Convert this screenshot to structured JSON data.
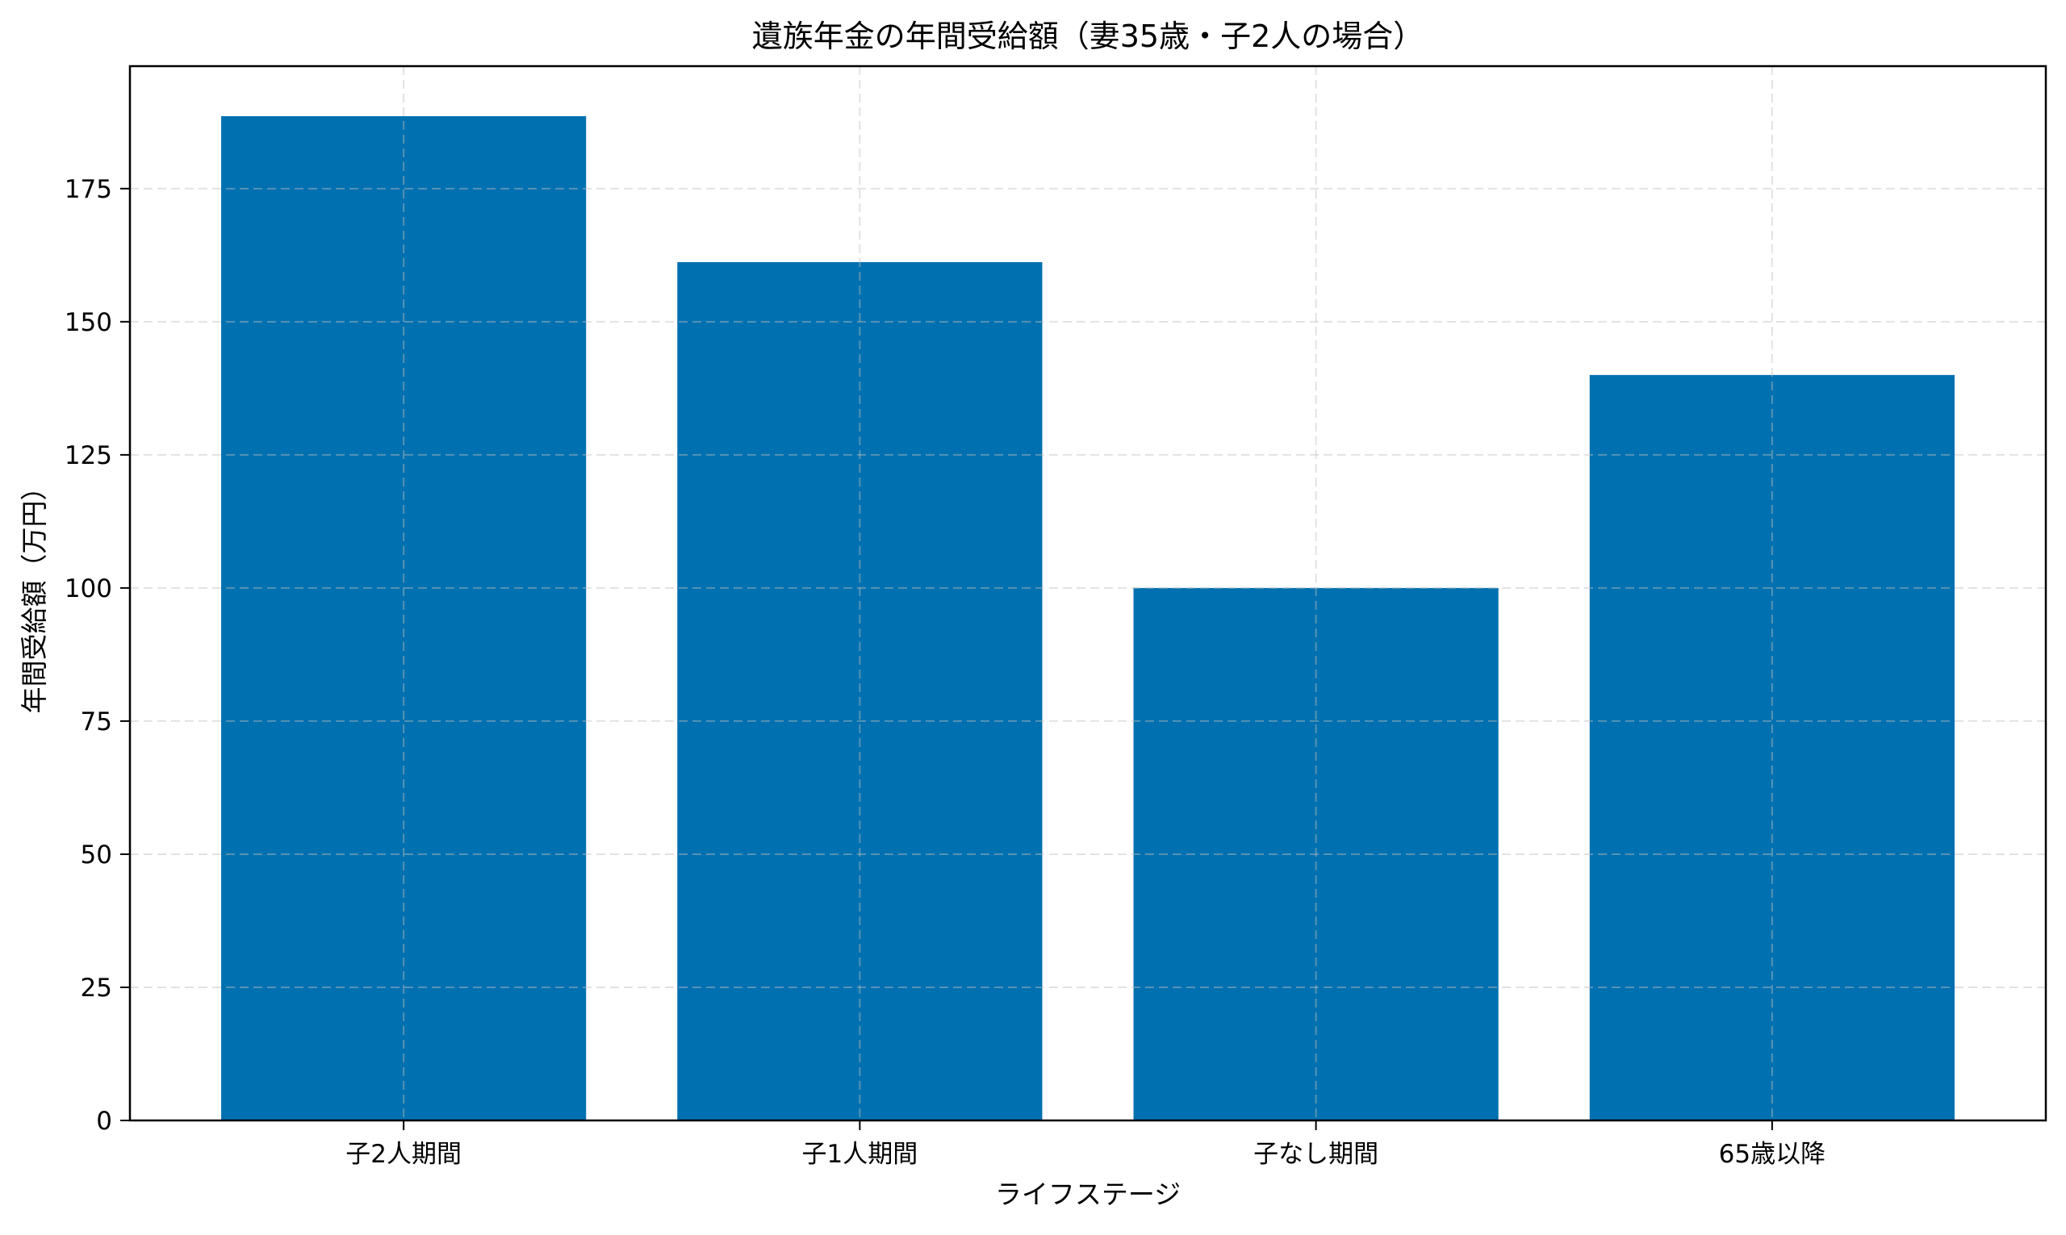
{
  "chart_data": {
    "type": "bar",
    "title": "遺族年金の年間受給額（妻35歳・子2人の場合）",
    "xlabel": "ライフステージ",
    "ylabel": "年間受給額（万円）",
    "categories": [
      "子2人期間",
      "子1人期間",
      "子なし期間",
      "65歳以降"
    ],
    "values": [
      188.6,
      161.2,
      100.0,
      140.0
    ],
    "ylim": [
      0,
      198
    ],
    "yticks": [
      0,
      25,
      50,
      75,
      100,
      125,
      150,
      175
    ],
    "grid": true,
    "grid_style": "dashed",
    "legend": null,
    "bar_color": "#0070b0"
  },
  "style": {
    "bar_color": "#0070b0",
    "grid_color": "#d9d9d9",
    "axis_color": "#000000"
  }
}
